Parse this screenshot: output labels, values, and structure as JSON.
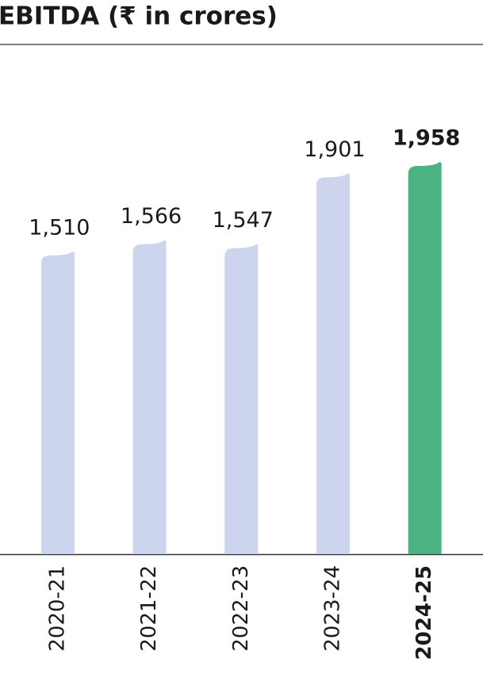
{
  "chart_data": {
    "type": "bar",
    "title": "EBITDA (₹ in crores)",
    "categories": [
      "2020-21",
      "2021-22",
      "2022-23",
      "2023-24",
      "2024-25"
    ],
    "values": [
      1510,
      1566,
      1547,
      1901,
      1958
    ],
    "value_labels": [
      "1,510",
      "1,566",
      "1,547",
      "1,901",
      "1,958"
    ],
    "colors": [
      "#cdd5ee",
      "#cdd5ee",
      "#cdd5ee",
      "#cdd5ee",
      "#4bb382"
    ],
    "highlight": 4
  }
}
